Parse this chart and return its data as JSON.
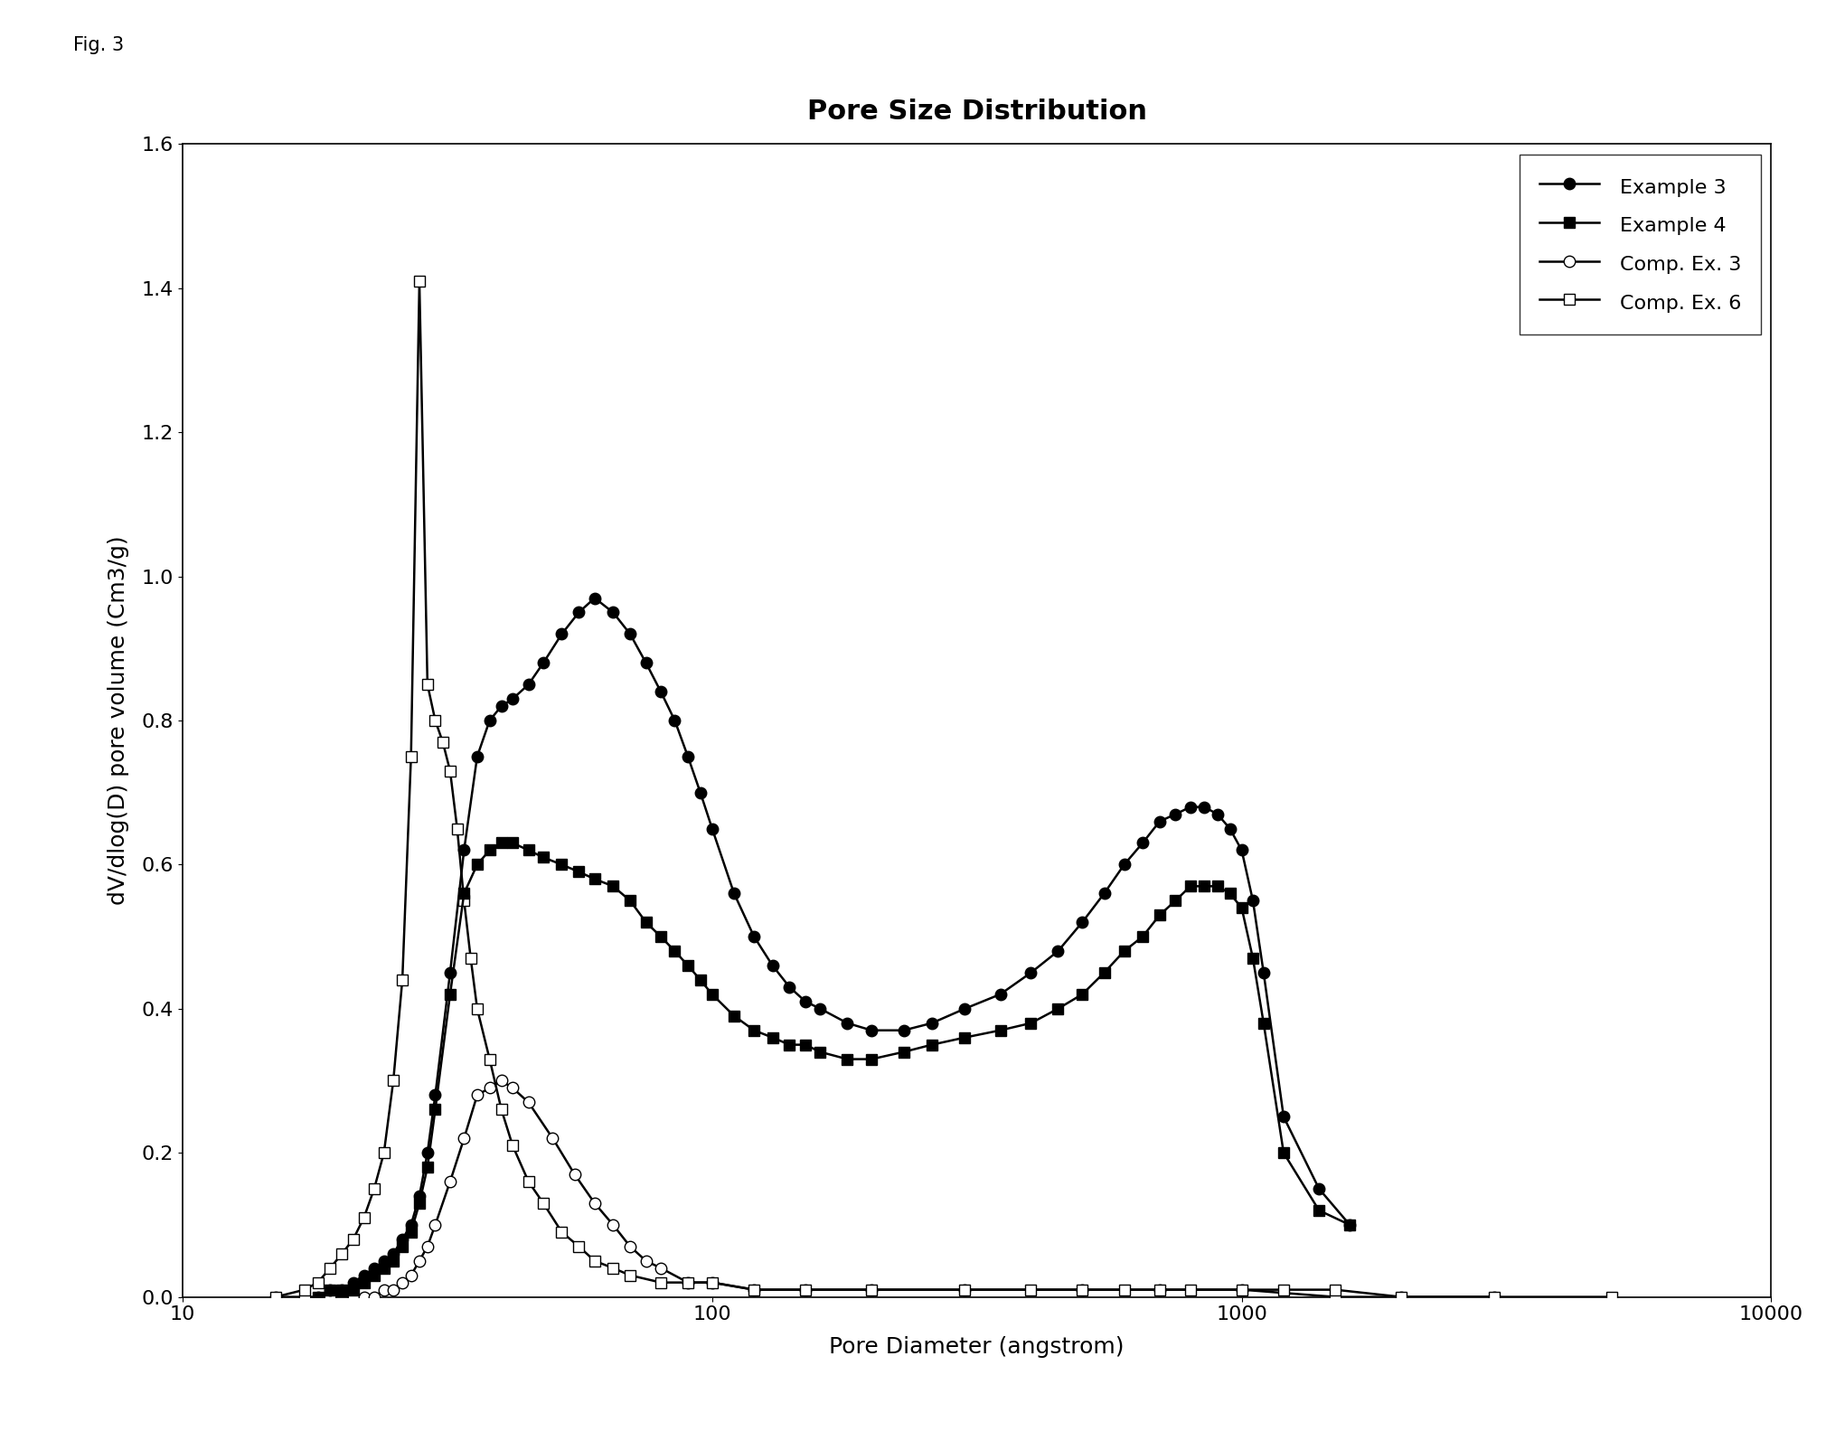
{
  "title": "Pore Size Distribution",
  "fig_label": "Fig. 3",
  "xlabel": "Pore Diameter (angstrom)",
  "ylabel": "dV/dlog(D) pore volume (Cm3/g)",
  "xlim": [
    10,
    10000
  ],
  "ylim": [
    0.0,
    1.6
  ],
  "yticks": [
    0.0,
    0.2,
    0.4,
    0.6,
    0.8,
    1.0,
    1.2,
    1.4,
    1.6
  ],
  "xticks": [
    10,
    100,
    1000,
    10000
  ],
  "xtick_labels": [
    "10",
    "100",
    "1000",
    "10000"
  ],
  "example3_x": [
    18,
    19,
    20,
    21,
    22,
    23,
    24,
    25,
    26,
    27,
    28,
    29,
    30,
    32,
    34,
    36,
    38,
    40,
    42,
    45,
    48,
    52,
    56,
    60,
    65,
    70,
    75,
    80,
    85,
    90,
    95,
    100,
    110,
    120,
    130,
    140,
    150,
    160,
    180,
    200,
    230,
    260,
    300,
    350,
    400,
    450,
    500,
    550,
    600,
    650,
    700,
    750,
    800,
    850,
    900,
    950,
    1000,
    1050,
    1100,
    1200,
    1400,
    1600
  ],
  "example3_y": [
    0.0,
    0.01,
    0.01,
    0.02,
    0.03,
    0.04,
    0.05,
    0.06,
    0.08,
    0.1,
    0.14,
    0.2,
    0.28,
    0.45,
    0.62,
    0.75,
    0.8,
    0.82,
    0.83,
    0.85,
    0.88,
    0.92,
    0.95,
    0.97,
    0.95,
    0.92,
    0.88,
    0.84,
    0.8,
    0.75,
    0.7,
    0.65,
    0.56,
    0.5,
    0.46,
    0.43,
    0.41,
    0.4,
    0.38,
    0.37,
    0.37,
    0.38,
    0.4,
    0.42,
    0.45,
    0.48,
    0.52,
    0.56,
    0.6,
    0.63,
    0.66,
    0.67,
    0.68,
    0.68,
    0.67,
    0.65,
    0.62,
    0.55,
    0.45,
    0.25,
    0.15,
    0.1
  ],
  "example4_x": [
    18,
    19,
    20,
    21,
    22,
    23,
    24,
    25,
    26,
    27,
    28,
    29,
    30,
    32,
    34,
    36,
    38,
    40,
    42,
    45,
    48,
    52,
    56,
    60,
    65,
    70,
    75,
    80,
    85,
    90,
    95,
    100,
    110,
    120,
    130,
    140,
    150,
    160,
    180,
    200,
    230,
    260,
    300,
    350,
    400,
    450,
    500,
    550,
    600,
    650,
    700,
    750,
    800,
    850,
    900,
    950,
    1000,
    1050,
    1100,
    1200,
    1400,
    1600
  ],
  "example4_y": [
    0.0,
    0.01,
    0.01,
    0.01,
    0.02,
    0.03,
    0.04,
    0.05,
    0.07,
    0.09,
    0.13,
    0.18,
    0.26,
    0.42,
    0.56,
    0.6,
    0.62,
    0.63,
    0.63,
    0.62,
    0.61,
    0.6,
    0.59,
    0.58,
    0.57,
    0.55,
    0.52,
    0.5,
    0.48,
    0.46,
    0.44,
    0.42,
    0.39,
    0.37,
    0.36,
    0.35,
    0.35,
    0.34,
    0.33,
    0.33,
    0.34,
    0.35,
    0.36,
    0.37,
    0.38,
    0.4,
    0.42,
    0.45,
    0.48,
    0.5,
    0.53,
    0.55,
    0.57,
    0.57,
    0.57,
    0.56,
    0.54,
    0.47,
    0.38,
    0.2,
    0.12,
    0.1
  ],
  "comp3_x": [
    15,
    17,
    19,
    21,
    22,
    23,
    24,
    25,
    26,
    27,
    28,
    29,
    30,
    32,
    34,
    36,
    38,
    40,
    42,
    45,
    50,
    55,
    60,
    65,
    70,
    75,
    80,
    90,
    100,
    120,
    150,
    200,
    300,
    500,
    700,
    1000,
    1500,
    2000,
    3000
  ],
  "comp3_y": [
    0.0,
    0.0,
    0.0,
    0.0,
    0.0,
    0.0,
    0.01,
    0.01,
    0.02,
    0.03,
    0.05,
    0.07,
    0.1,
    0.16,
    0.22,
    0.28,
    0.29,
    0.3,
    0.29,
    0.27,
    0.22,
    0.17,
    0.13,
    0.1,
    0.07,
    0.05,
    0.04,
    0.02,
    0.02,
    0.01,
    0.01,
    0.01,
    0.01,
    0.01,
    0.01,
    0.01,
    0.0,
    0.0,
    0.0
  ],
  "comp6_x": [
    15,
    17,
    18,
    19,
    20,
    21,
    22,
    23,
    24,
    25,
    26,
    27,
    28,
    29,
    30,
    31,
    32,
    33,
    34,
    35,
    36,
    38,
    40,
    42,
    45,
    48,
    52,
    56,
    60,
    65,
    70,
    80,
    90,
    100,
    120,
    150,
    200,
    300,
    400,
    500,
    600,
    700,
    800,
    1000,
    1200,
    1500,
    2000,
    3000,
    5000
  ],
  "comp6_y": [
    0.0,
    0.01,
    0.02,
    0.04,
    0.06,
    0.08,
    0.11,
    0.15,
    0.2,
    0.3,
    0.44,
    0.75,
    1.41,
    0.85,
    0.8,
    0.77,
    0.73,
    0.65,
    0.55,
    0.47,
    0.4,
    0.33,
    0.26,
    0.21,
    0.16,
    0.13,
    0.09,
    0.07,
    0.05,
    0.04,
    0.03,
    0.02,
    0.02,
    0.02,
    0.01,
    0.01,
    0.01,
    0.01,
    0.01,
    0.01,
    0.01,
    0.01,
    0.01,
    0.01,
    0.01,
    0.01,
    0.0,
    0.0,
    0.0
  ],
  "background_color": "#ffffff",
  "line_color": "#000000",
  "title_fontsize": 22,
  "label_fontsize": 18,
  "tick_fontsize": 16,
  "legend_fontsize": 16
}
